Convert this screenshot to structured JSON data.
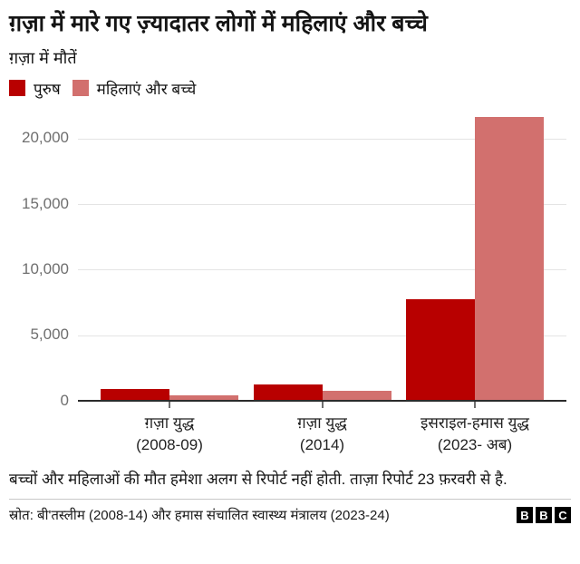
{
  "header": {
    "title": "ग़ज़ा में मारे गए ज़्यादातर लोगों में महिलाएं और बच्चे",
    "subtitle": "ग़ज़ा में मौतें"
  },
  "legend": [
    {
      "label": "पुरुष",
      "color": "#b80000"
    },
    {
      "label": "महिलाएं और बच्चे",
      "color": "#d2706e"
    }
  ],
  "chart_data": {
    "type": "bar",
    "title": "ग़ज़ा में मारे गए ज़्यादातर लोगों में महिलाएं और बच्चे",
    "subtitle": "ग़ज़ा में मौतें",
    "categories": [
      {
        "line1": "ग़ज़ा युद्ध",
        "line2": "(2008-09)"
      },
      {
        "line1": "ग़ज़ा युद्ध",
        "line2": "(2014)"
      },
      {
        "line1": "इसराइल-हमास युद्ध",
        "line2": "(2023- अब)"
      }
    ],
    "series": [
      {
        "name": "पुरुष",
        "color": "#b80000",
        "values": [
          950,
          1300,
          7800
        ]
      },
      {
        "name": "महिलाएं और बच्चे",
        "color": "#d2706e",
        "values": [
          450,
          800,
          21700
        ]
      }
    ],
    "yticks": [
      {
        "value": 0,
        "label": "0"
      },
      {
        "value": 5000,
        "label": "5,000"
      },
      {
        "value": 10000,
        "label": "10,000"
      },
      {
        "value": 15000,
        "label": "15,000"
      },
      {
        "value": 20000,
        "label": "20,000"
      }
    ],
    "ylim": [
      0,
      22000
    ],
    "xlabel": "",
    "ylabel": "",
    "grid": "horizontal",
    "legend_position": "top-left"
  },
  "footer": {
    "note": "बच्चों और महिलाओं की मौत हमेशा अलग से रिपोर्ट नहीं होती. ताज़ा रिपोर्ट 23 फ़रवरी से है.",
    "source": "स्रोत: बी'तस्लीम (2008-14) और हमास संचालित स्वास्थ्य मंत्रालय (2023-24)",
    "logo_letters": [
      "B",
      "B",
      "C"
    ]
  }
}
